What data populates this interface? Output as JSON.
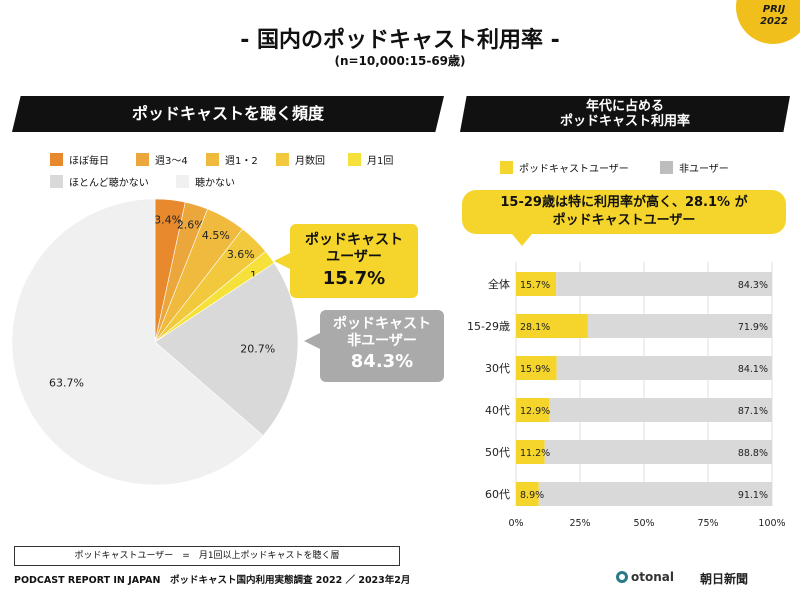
{
  "badge": "PRIJ\n2022",
  "title": "- 国内のポッドキャスト利用率 -",
  "subtitle": "(n=10,000:15-69歳)",
  "left_header": "ポッドキャストを聴く頻度",
  "right_header_line1": "年代に占める",
  "right_header_line2": "ポッドキャスト利用率",
  "callout_users": {
    "line1": "ポッドキャスト",
    "line2": "ユーザー",
    "value": "15.7%"
  },
  "callout_non": {
    "line1": "ポッドキャスト",
    "line2": "非ユーザー",
    "value": "84.3%"
  },
  "highlight_line1": "15-29歳は特に利用率が高く、28.1% が",
  "highlight_line2": "ポッドキャストユーザー",
  "footnote_box": "ポッドキャストユーザー　=　月1回以上ポッドキャストを聴く層",
  "footer": "PODCAST REPORT IN JAPAN　ポッドキャスト国内利用実態調査 2022 ／ 2023年2月",
  "logo_otonal": "otonal",
  "logo_asahi": "朝日新聞",
  "colors": {
    "daily": "#e8892e",
    "w34": "#eba73b",
    "w12": "#efba3d",
    "monthly_several": "#f2c93d",
    "monthly_once": "#f5e13a",
    "rarely": "#d9d9d9",
    "never": "#f0f0f0",
    "user": "#f5d52b",
    "nonuser": "#d9d9d9"
  },
  "chart_data": [
    {
      "type": "pie",
      "labels": [
        "ほぼ毎日",
        "週3〜4",
        "週1・2",
        "月数回",
        "月1回",
        "ほとんど聴かない",
        "聴かない"
      ],
      "values": [
        3.4,
        2.6,
        4.5,
        3.6,
        1.6,
        20.7,
        63.7
      ],
      "value_labels": [
        "3.4%",
        "2.6%",
        "4.5%",
        "3.6%",
        "1.6%",
        "20.7%",
        "63.7%"
      ],
      "legend": "top"
    },
    {
      "type": "bar",
      "orientation": "horizontal",
      "stacked": true,
      "categories": [
        "全体",
        "15-29歳",
        "30代",
        "40代",
        "50代",
        "60代"
      ],
      "series": [
        {
          "name": "ポッドキャストユーザー",
          "values": [
            15.7,
            28.1,
            15.9,
            12.9,
            11.2,
            8.9
          ],
          "value_labels": [
            "15.7%",
            "28.1%",
            "15.9%",
            "12.9%",
            "11.2%",
            "8.9%"
          ]
        },
        {
          "name": "非ユーザー",
          "values": [
            84.3,
            71.9,
            84.1,
            87.1,
            88.8,
            91.1
          ],
          "value_labels": [
            "84.3%",
            "71.9%",
            "84.1%",
            "87.1%",
            "88.8%",
            "91.1%"
          ]
        }
      ],
      "xlim": [
        0,
        100
      ],
      "x_ticks": [
        "0%",
        "25%",
        "50%",
        "75%",
        "100%"
      ],
      "legend": "top"
    }
  ]
}
